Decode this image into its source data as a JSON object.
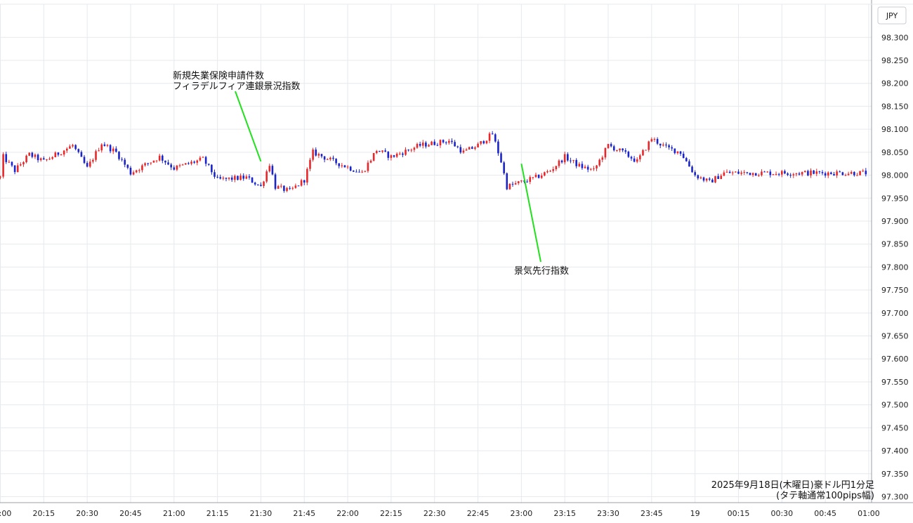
{
  "chart_data": {
    "type": "candlestick",
    "currency_label": "JPY",
    "caption_line1": "2025年9月18日(木曜日)豪ドル円1分足",
    "caption_line2": "(タテ軸通常100pips幅)",
    "ylim": [
      97.28,
      98.35
    ],
    "y_ticks": [
      "98.300",
      "98.250",
      "98.200",
      "98.150",
      "98.100",
      "98.050",
      "98.000",
      "97.950",
      "97.900",
      "97.850",
      "97.800",
      "97.750",
      "97.700",
      "97.650",
      "97.600",
      "97.550",
      "97.500",
      "97.450",
      "97.400",
      "97.350",
      "97.300"
    ],
    "x_ticks": [
      "20:00",
      "20:15",
      "20:30",
      "20:45",
      "21:00",
      "21:15",
      "21:30",
      "21:45",
      "22:00",
      "22:15",
      "22:30",
      "22:45",
      "23:00",
      "23:15",
      "23:30",
      "23:45",
      "19",
      "00:15",
      "00:30",
      "00:45",
      "01:00"
    ],
    "minutes_per_candle": 1,
    "up_color": "#e8272b",
    "down_color": "#1b24c8",
    "grid": true,
    "annotations": [
      {
        "lines": [
          "新規失業保険申請件数",
          "フィラデルフィア連銀景況指数"
        ],
        "time": "21:30",
        "price": 98.03,
        "line_color": "#22e01e"
      },
      {
        "lines": [
          "景気先行指数"
        ],
        "time": "23:00",
        "price": 98.025,
        "line_color": "#22e01e"
      }
    ],
    "close_path": [
      [
        0,
        97.995
      ],
      [
        1,
        98.04
      ],
      [
        5,
        98.01
      ],
      [
        10,
        98.045
      ],
      [
        15,
        98.03
      ],
      [
        25,
        98.065
      ],
      [
        30,
        98.015
      ],
      [
        35,
        98.07
      ],
      [
        40,
        98.05
      ],
      [
        45,
        98.005
      ],
      [
        55,
        98.04
      ],
      [
        60,
        98.015
      ],
      [
        70,
        98.035
      ],
      [
        75,
        97.99
      ],
      [
        85,
        97.995
      ],
      [
        90,
        97.975
      ],
      [
        93,
        98.025
      ],
      [
        95,
        97.975
      ],
      [
        100,
        97.965
      ],
      [
        105,
        97.99
      ],
      [
        108,
        98.05
      ],
      [
        115,
        98.03
      ],
      [
        125,
        98.005
      ],
      [
        130,
        98.055
      ],
      [
        135,
        98.04
      ],
      [
        145,
        98.065
      ],
      [
        155,
        98.075
      ],
      [
        160,
        98.05
      ],
      [
        165,
        98.065
      ],
      [
        170,
        98.09
      ],
      [
        173,
        98.03
      ],
      [
        175,
        97.975
      ],
      [
        180,
        97.985
      ],
      [
        185,
        97.995
      ],
      [
        190,
        98.01
      ],
      [
        195,
        98.04
      ],
      [
        200,
        98.02
      ],
      [
        205,
        98.01
      ],
      [
        210,
        98.065
      ],
      [
        215,
        98.05
      ],
      [
        220,
        98.03
      ],
      [
        225,
        98.08
      ],
      [
        230,
        98.06
      ],
      [
        235,
        98.05
      ],
      [
        240,
        98.0
      ],
      [
        245,
        97.985
      ],
      [
        250,
        98.005
      ],
      [
        240,
        98.0
      ]
    ],
    "series": [
      {
        "name": "",
        "close_path": []
      }
    ]
  }
}
